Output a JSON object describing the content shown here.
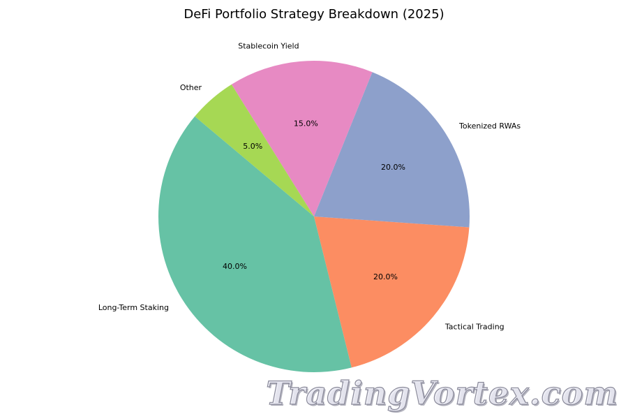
{
  "chart_data": {
    "type": "pie",
    "title": "DeFi Portfolio Strategy Breakdown (2025)",
    "categories": [
      "Long-Term Staking",
      "Tactical Trading",
      "Tokenized RWAs",
      "Stablecoin Yield",
      "Other"
    ],
    "values": [
      40.0,
      20.0,
      20.0,
      15.0,
      5.0
    ],
    "percent_labels": [
      "40.0%",
      "20.0%",
      "20.0%",
      "15.0%",
      "5.0%"
    ],
    "colors": [
      "#66c2a5",
      "#fc8d62",
      "#8da0cb",
      "#e78ac3",
      "#a6d854"
    ],
    "start_angle_deg": 140,
    "direction": "counterclockwise"
  },
  "watermark": {
    "text": "TradingVortex.com"
  }
}
